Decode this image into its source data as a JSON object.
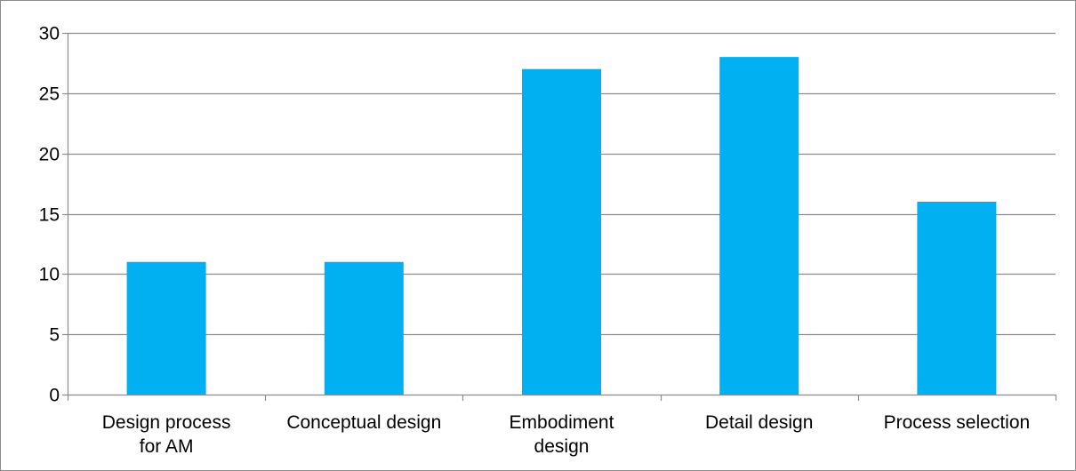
{
  "chart_data": {
    "type": "bar",
    "categories": [
      [
        "Design process",
        "for AM"
      ],
      [
        "Conceptual design"
      ],
      [
        "Embodiment",
        "design"
      ],
      [
        "Detail design"
      ],
      [
        "Process selection"
      ]
    ],
    "values": [
      11,
      11,
      27,
      28,
      16
    ],
    "ylim": [
      0,
      30
    ],
    "yticks": [
      0,
      5,
      10,
      15,
      20,
      25,
      30
    ],
    "grid": true,
    "legend": "none",
    "colors": {
      "bar": "#00B0F0",
      "grid": "#8c8c8c",
      "axis": "#8c8c8c"
    }
  }
}
